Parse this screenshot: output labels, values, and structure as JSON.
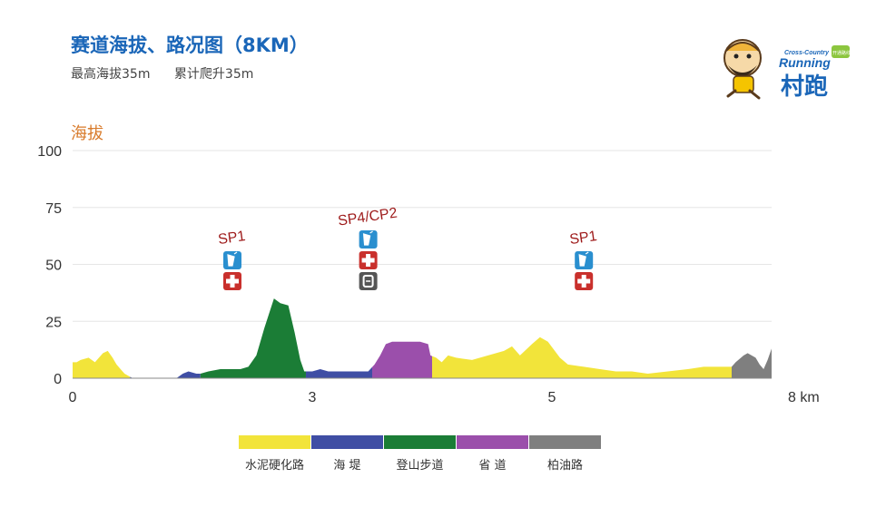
{
  "header": {
    "title": "赛道海拔、路况图（8KM）",
    "max_elevation": "最高海拔35m",
    "total_climb": "累计爬升35m"
  },
  "logo": {
    "line1": "Cross-Country",
    "line2": "Running",
    "line3": "村跑",
    "badge": "开通路线"
  },
  "chart_data": {
    "type": "area",
    "ylabel": "海拔",
    "xunit": "km",
    "ylim": [
      0,
      100
    ],
    "yticks": [
      0,
      25,
      50,
      75,
      100
    ],
    "xticks": [
      {
        "pos": 0,
        "label": "0"
      },
      {
        "pos": 3,
        "label": "3"
      },
      {
        "pos": 6,
        "label": "5"
      },
      {
        "pos": 8.75,
        "label": "8 km"
      }
    ],
    "xmax": 8.75,
    "grid": true,
    "profile": [
      [
        0,
        7
      ],
      [
        0.05,
        7
      ],
      [
        0.1,
        8
      ],
      [
        0.2,
        9
      ],
      [
        0.28,
        7
      ],
      [
        0.38,
        11
      ],
      [
        0.44,
        12
      ],
      [
        0.5,
        9
      ],
      [
        0.55,
        6
      ],
      [
        0.6,
        4
      ],
      [
        0.65,
        2
      ],
      [
        0.7,
        1
      ],
      [
        0.75,
        0
      ],
      [
        0.8,
        0
      ],
      [
        1.0,
        0
      ],
      [
        1.3,
        0
      ],
      [
        1.38,
        2
      ],
      [
        1.45,
        3
      ],
      [
        1.55,
        2
      ],
      [
        1.6,
        2
      ],
      [
        1.7,
        3
      ],
      [
        1.85,
        4
      ],
      [
        2.0,
        4
      ],
      [
        2.1,
        4
      ],
      [
        2.2,
        5
      ],
      [
        2.3,
        10
      ],
      [
        2.4,
        22
      ],
      [
        2.52,
        35
      ],
      [
        2.6,
        33
      ],
      [
        2.7,
        32
      ],
      [
        2.78,
        20
      ],
      [
        2.85,
        8
      ],
      [
        2.9,
        3
      ],
      [
        3.0,
        3
      ],
      [
        3.1,
        4
      ],
      [
        3.2,
        3
      ],
      [
        3.3,
        3
      ],
      [
        3.5,
        3
      ],
      [
        3.7,
        3
      ],
      [
        3.78,
        6
      ],
      [
        3.85,
        10
      ],
      [
        3.92,
        15
      ],
      [
        4.0,
        16
      ],
      [
        4.2,
        16
      ],
      [
        4.35,
        16
      ],
      [
        4.45,
        15
      ],
      [
        4.48,
        10
      ],
      [
        4.55,
        9
      ],
      [
        4.62,
        7
      ],
      [
        4.7,
        10
      ],
      [
        4.8,
        9
      ],
      [
        5.0,
        8
      ],
      [
        5.2,
        10
      ],
      [
        5.4,
        12
      ],
      [
        5.5,
        14
      ],
      [
        5.6,
        10
      ],
      [
        5.75,
        15
      ],
      [
        5.85,
        18
      ],
      [
        5.95,
        16
      ],
      [
        6.1,
        9
      ],
      [
        6.2,
        6
      ],
      [
        6.4,
        5
      ],
      [
        6.6,
        4
      ],
      [
        6.8,
        3
      ],
      [
        7.0,
        3
      ],
      [
        7.2,
        2
      ],
      [
        7.45,
        3
      ],
      [
        7.7,
        4
      ],
      [
        7.9,
        5
      ],
      [
        8.1,
        5
      ],
      [
        8.25,
        5
      ],
      [
        8.3,
        7
      ],
      [
        8.4,
        10
      ],
      [
        8.45,
        11
      ],
      [
        8.55,
        9
      ],
      [
        8.6,
        6
      ],
      [
        8.65,
        4
      ],
      [
        8.7,
        8
      ],
      [
        8.75,
        13
      ]
    ],
    "segments": [
      {
        "name": "水泥硬化路",
        "color": "#f2e43a",
        "from": 0,
        "to": 0.72
      },
      {
        "name": "海 堤",
        "color": "#3f4ea4",
        "from": 0.72,
        "to": 1.6
      },
      {
        "name": "登山步道",
        "color": "#1b7d36",
        "from": 1.6,
        "to": 2.92
      },
      {
        "name": "海 堤",
        "color": "#3f4ea4",
        "from": 2.92,
        "to": 3.75
      },
      {
        "name": "省 道",
        "color": "#9b4fab",
        "from": 3.75,
        "to": 4.5
      },
      {
        "name": "水泥硬化路",
        "color": "#f2e43a",
        "from": 4.5,
        "to": 8.25
      },
      {
        "name": "柏油路",
        "color": "#7f7f7f",
        "from": 8.25,
        "to": 8.75
      }
    ],
    "stations": [
      {
        "label": "SP1",
        "pos": 2.0,
        "icons": [
          "drink",
          "medical"
        ],
        "rotate": -8
      },
      {
        "label": "SP4/CP2",
        "pos": 3.7,
        "icons": [
          "drink",
          "medical",
          "checkpoint"
        ],
        "rotate": -8
      },
      {
        "label": "SP1",
        "pos": 6.4,
        "icons": [
          "drink",
          "medical"
        ],
        "rotate": -8
      }
    ],
    "legend": [
      {
        "name": "水泥硬化路",
        "color": "#f2e43a"
      },
      {
        "name": "海 堤",
        "color": "#3f4ea4"
      },
      {
        "name": "登山步道",
        "color": "#1b7d36"
      },
      {
        "name": "省 道",
        "color": "#9b4fab"
      },
      {
        "name": "柏油路",
        "color": "#7f7f7f"
      }
    ]
  }
}
